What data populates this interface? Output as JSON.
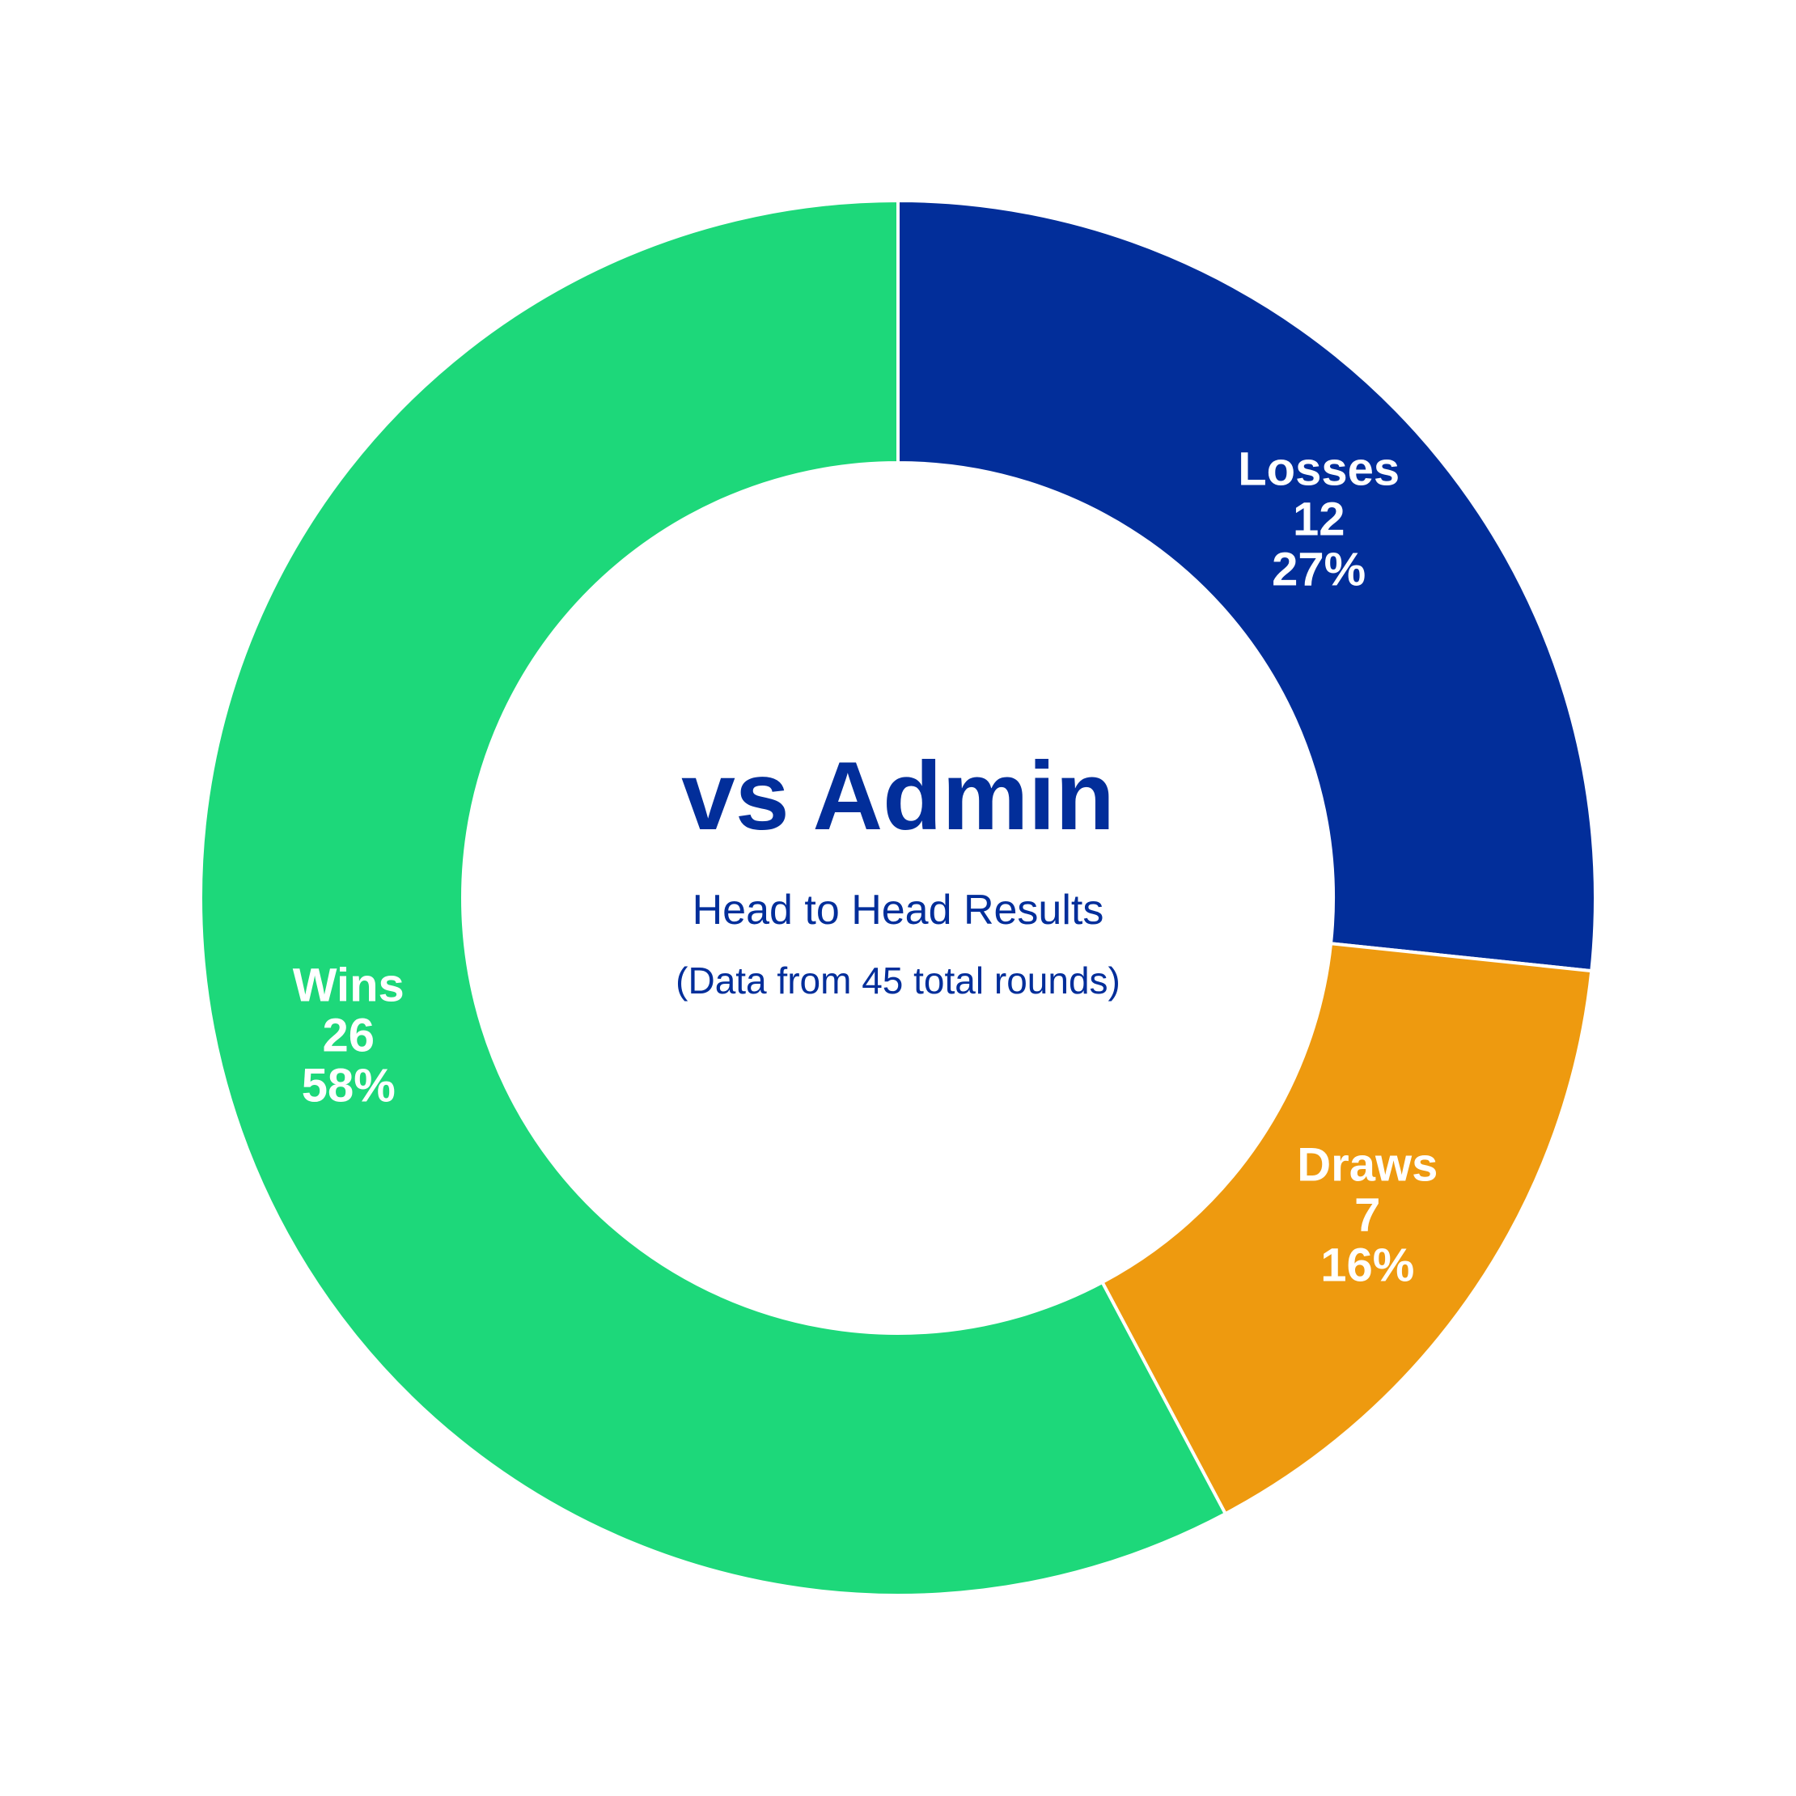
{
  "chart_data": {
    "type": "pie",
    "title": "vs Admin",
    "subtitle": "Head to Head Results",
    "note": "(Data from 45 total rounds)",
    "categories": [
      "Losses",
      "Draws",
      "Wins"
    ],
    "values": [
      12,
      7,
      26
    ],
    "percent_labels": [
      "27%",
      "16%",
      "58%"
    ],
    "colors": [
      "#022e9a",
      "#ee9a0f",
      "#1dd87a"
    ],
    "text_color": "#022e9a",
    "donut": true,
    "start": "top, clockwise",
    "legend": "none"
  }
}
